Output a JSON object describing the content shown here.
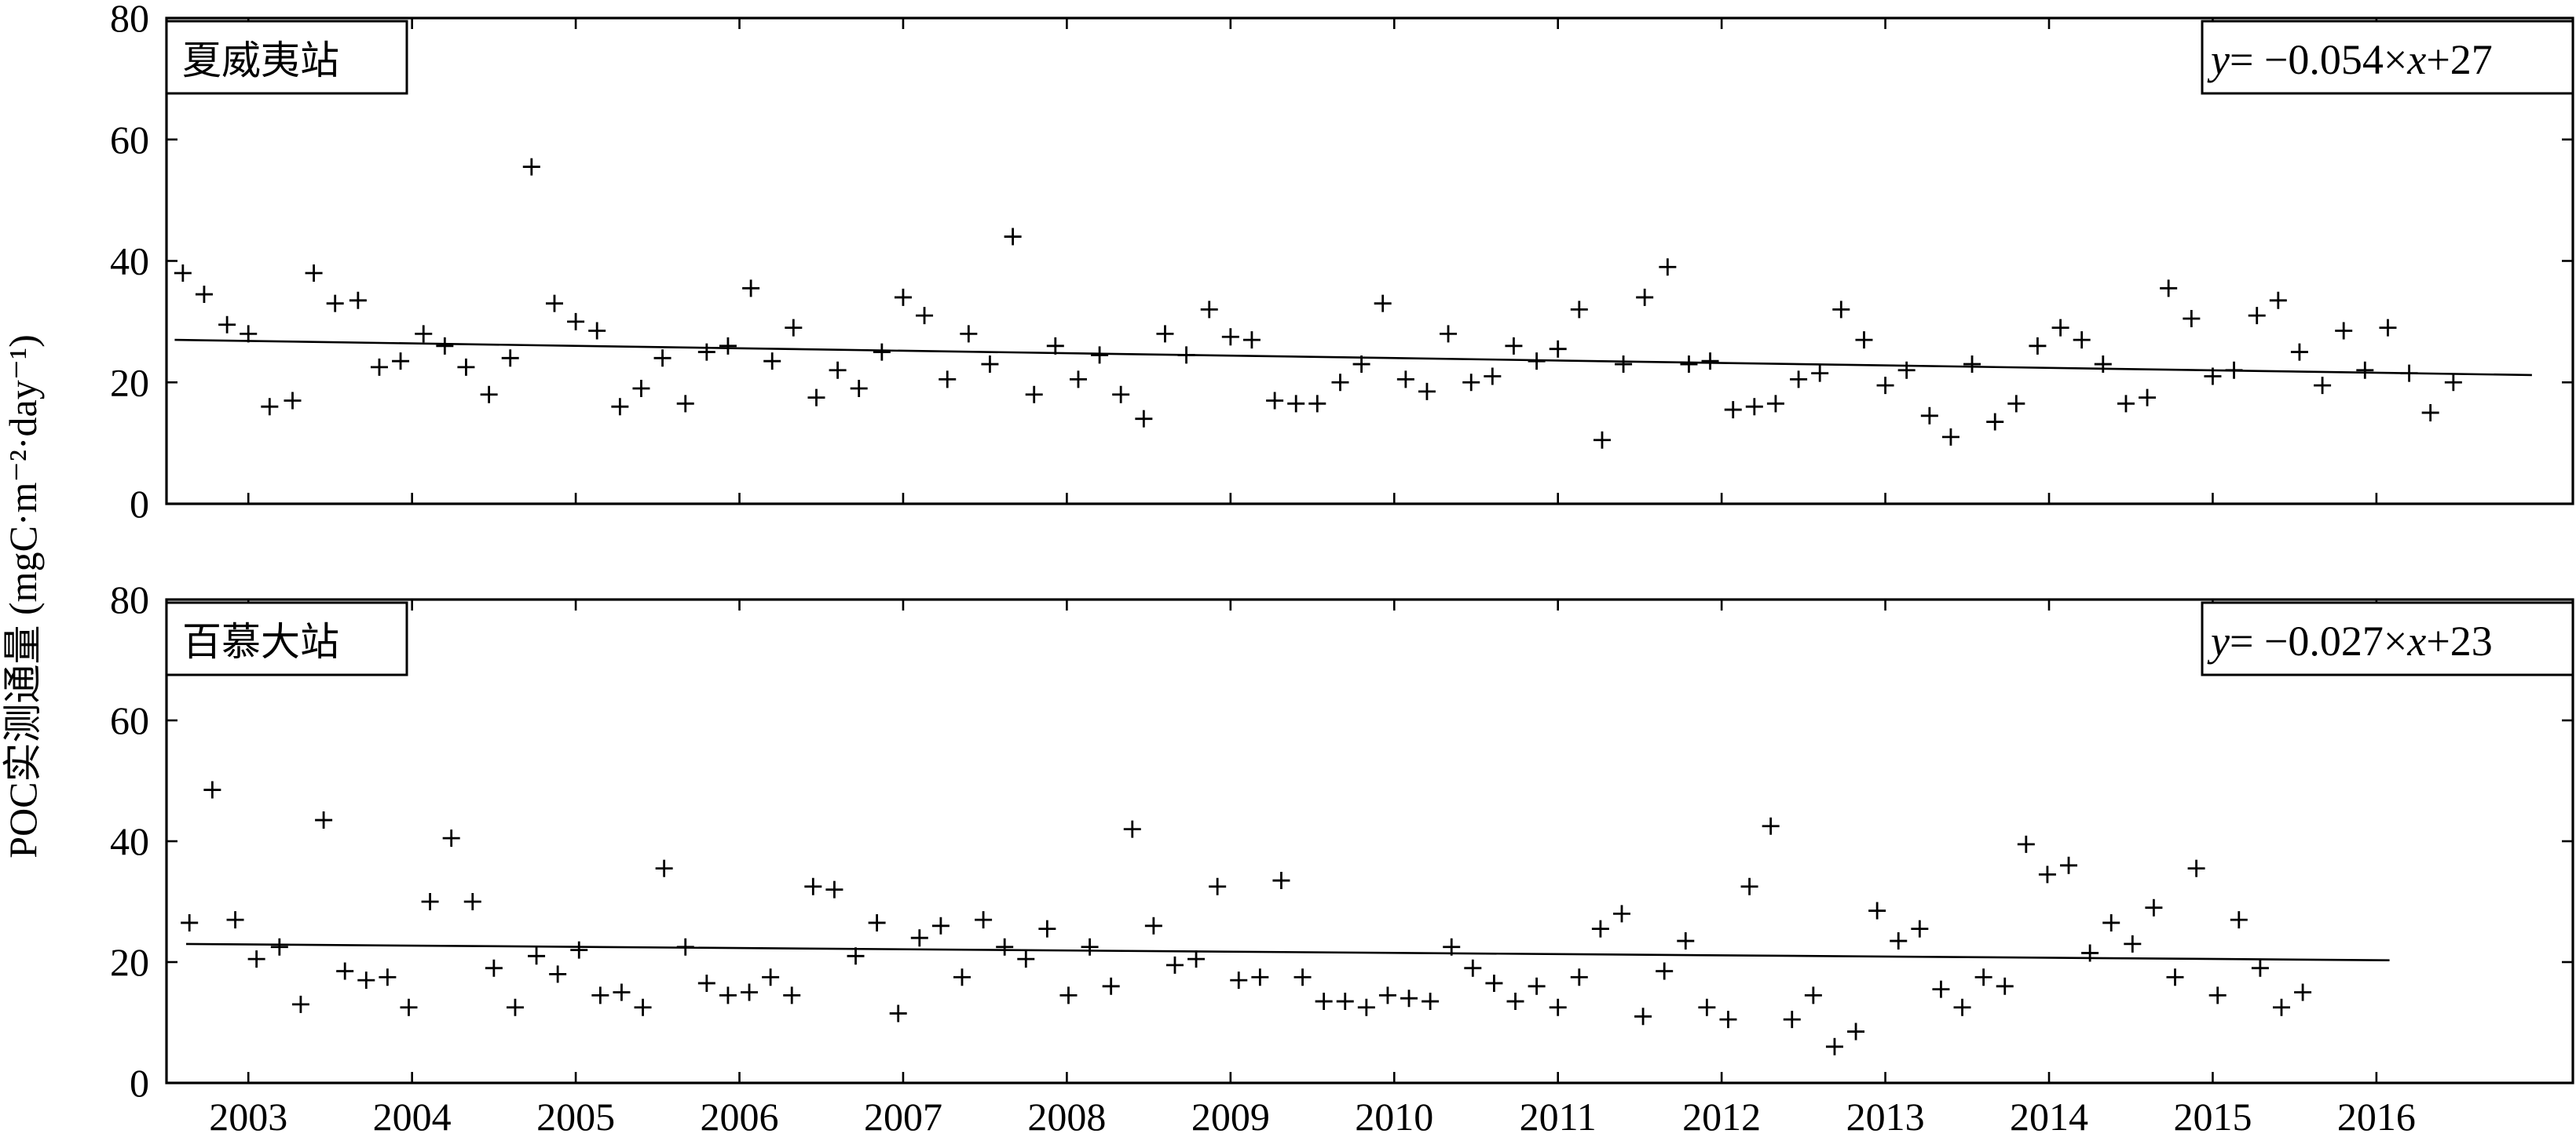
{
  "ylabel": "POC实测通量 (mgC·m⁻²·day⁻¹)",
  "chart_data": [
    {
      "type": "scatter",
      "title": "夏威夷站",
      "equation": {
        "y": "y",
        "x": "x",
        "rhs_a": "= −0.054×",
        "rhs_b": "+27"
      },
      "xlim": [
        2002.5,
        2017.2
      ],
      "ylim": [
        0,
        80
      ],
      "xticks": [
        2003,
        2004,
        2005,
        2006,
        2007,
        2008,
        2009,
        2010,
        2011,
        2012,
        2013,
        2014,
        2015,
        2016
      ],
      "yticks": [
        0,
        20,
        40,
        60,
        80
      ],
      "show_xtick_labels": false,
      "trend": {
        "x": [
          2002.55,
          2016.95
        ],
        "y": [
          27.0,
          21.2
        ]
      },
      "points": [
        [
          2002.6,
          38
        ],
        [
          2002.73,
          34.5
        ],
        [
          2002.87,
          29.5
        ],
        [
          2003.0,
          28
        ],
        [
          2003.13,
          16
        ],
        [
          2003.27,
          17
        ],
        [
          2003.4,
          38
        ],
        [
          2003.53,
          33
        ],
        [
          2003.67,
          33.5
        ],
        [
          2003.8,
          22.5
        ],
        [
          2003.93,
          23.5
        ],
        [
          2004.07,
          28
        ],
        [
          2004.2,
          26
        ],
        [
          2004.33,
          22.5
        ],
        [
          2004.47,
          18
        ],
        [
          2004.6,
          24
        ],
        [
          2004.73,
          55.5
        ],
        [
          2004.87,
          33
        ],
        [
          2005.0,
          30
        ],
        [
          2005.13,
          28.5
        ],
        [
          2005.27,
          16
        ],
        [
          2005.4,
          19
        ],
        [
          2005.53,
          24
        ],
        [
          2005.67,
          16.5
        ],
        [
          2005.8,
          25
        ],
        [
          2005.93,
          26
        ],
        [
          2006.07,
          35.5
        ],
        [
          2006.2,
          23.5
        ],
        [
          2006.33,
          29
        ],
        [
          2006.47,
          17.5
        ],
        [
          2006.6,
          22
        ],
        [
          2006.73,
          19
        ],
        [
          2006.87,
          25
        ],
        [
          2007.0,
          34
        ],
        [
          2007.13,
          31
        ],
        [
          2007.27,
          20.5
        ],
        [
          2007.4,
          28
        ],
        [
          2007.53,
          23
        ],
        [
          2007.67,
          44
        ],
        [
          2007.8,
          18
        ],
        [
          2007.93,
          26
        ],
        [
          2008.07,
          20.5
        ],
        [
          2008.2,
          24.5
        ],
        [
          2008.33,
          18
        ],
        [
          2008.47,
          14
        ],
        [
          2008.6,
          28
        ],
        [
          2008.73,
          24.5
        ],
        [
          2008.87,
          32
        ],
        [
          2009.0,
          27.5
        ],
        [
          2009.13,
          27
        ],
        [
          2009.27,
          17
        ],
        [
          2009.4,
          16.5
        ],
        [
          2009.53,
          16.5
        ],
        [
          2009.67,
          20
        ],
        [
          2009.8,
          23
        ],
        [
          2009.93,
          33
        ],
        [
          2010.07,
          20.5
        ],
        [
          2010.2,
          18.5
        ],
        [
          2010.33,
          28
        ],
        [
          2010.47,
          20
        ],
        [
          2010.6,
          21
        ],
        [
          2010.73,
          26
        ],
        [
          2010.87,
          23.5
        ],
        [
          2011.0,
          25.5
        ],
        [
          2011.13,
          32
        ],
        [
          2011.27,
          10.5
        ],
        [
          2011.4,
          23
        ],
        [
          2011.53,
          34
        ],
        [
          2011.67,
          39
        ],
        [
          2011.8,
          23
        ],
        [
          2011.93,
          23.5
        ],
        [
          2012.07,
          15.5
        ],
        [
          2012.2,
          16
        ],
        [
          2012.33,
          16.5
        ],
        [
          2012.47,
          20.5
        ],
        [
          2012.6,
          21.5
        ],
        [
          2012.73,
          32
        ],
        [
          2012.87,
          27
        ],
        [
          2013.0,
          19.5
        ],
        [
          2013.13,
          22
        ],
        [
          2013.27,
          14.5
        ],
        [
          2013.4,
          11
        ],
        [
          2013.53,
          23
        ],
        [
          2013.67,
          13.5
        ],
        [
          2013.8,
          16.5
        ],
        [
          2013.93,
          26
        ],
        [
          2014.07,
          29
        ],
        [
          2014.2,
          27
        ],
        [
          2014.33,
          23
        ],
        [
          2014.47,
          16.5
        ],
        [
          2014.6,
          17.5
        ],
        [
          2014.73,
          35.5
        ],
        [
          2014.87,
          30.5
        ],
        [
          2015.0,
          21
        ],
        [
          2015.13,
          22
        ],
        [
          2015.27,
          31
        ],
        [
          2015.4,
          33.5
        ],
        [
          2015.53,
          25
        ],
        [
          2015.67,
          19.5
        ],
        [
          2015.8,
          28.5
        ],
        [
          2015.93,
          22
        ],
        [
          2016.07,
          29
        ],
        [
          2016.2,
          21.5
        ],
        [
          2016.33,
          15
        ],
        [
          2016.47,
          20
        ]
      ]
    },
    {
      "type": "scatter",
      "title": "百慕大站",
      "equation": {
        "y": "y",
        "x": "x",
        "rhs_a": "= −0.027×",
        "rhs_b": "+23"
      },
      "xlim": [
        2002.5,
        2017.2
      ],
      "ylim": [
        0,
        80
      ],
      "xticks": [
        2003,
        2004,
        2005,
        2006,
        2007,
        2008,
        2009,
        2010,
        2011,
        2012,
        2013,
        2014,
        2015,
        2016
      ],
      "yticks": [
        0,
        20,
        40,
        60,
        80
      ],
      "show_xtick_labels": true,
      "trend": {
        "x": [
          2002.62,
          2016.08
        ],
        "y": [
          23.0,
          20.3
        ]
      },
      "points": [
        [
          2002.64,
          26.5
        ],
        [
          2002.78,
          48.5
        ],
        [
          2002.92,
          27
        ],
        [
          2003.05,
          20.5
        ],
        [
          2003.19,
          22.5
        ],
        [
          2003.32,
          13
        ],
        [
          2003.46,
          43.5
        ],
        [
          2003.59,
          18.5
        ],
        [
          2003.72,
          17
        ],
        [
          2003.85,
          17.5
        ],
        [
          2003.98,
          12.5
        ],
        [
          2004.11,
          30
        ],
        [
          2004.24,
          40.5
        ],
        [
          2004.37,
          30
        ],
        [
          2004.5,
          19
        ],
        [
          2004.63,
          12.5
        ],
        [
          2004.76,
          21
        ],
        [
          2004.89,
          18
        ],
        [
          2005.02,
          22
        ],
        [
          2005.15,
          14.5
        ],
        [
          2005.28,
          15
        ],
        [
          2005.41,
          12.5
        ],
        [
          2005.54,
          35.5
        ],
        [
          2005.67,
          22.5
        ],
        [
          2005.8,
          16.5
        ],
        [
          2005.93,
          14.5
        ],
        [
          2006.06,
          15
        ],
        [
          2006.19,
          17.5
        ],
        [
          2006.32,
          14.5
        ],
        [
          2006.45,
          32.5
        ],
        [
          2006.58,
          32
        ],
        [
          2006.71,
          21
        ],
        [
          2006.84,
          26.5
        ],
        [
          2006.97,
          11.5
        ],
        [
          2007.1,
          24
        ],
        [
          2007.23,
          26
        ],
        [
          2007.36,
          17.5
        ],
        [
          2007.49,
          27
        ],
        [
          2007.62,
          22.5
        ],
        [
          2007.75,
          20.5
        ],
        [
          2007.88,
          25.5
        ],
        [
          2008.01,
          14.5
        ],
        [
          2008.14,
          22.5
        ],
        [
          2008.27,
          16
        ],
        [
          2008.4,
          42
        ],
        [
          2008.53,
          26
        ],
        [
          2008.66,
          19.5
        ],
        [
          2008.79,
          20.5
        ],
        [
          2008.92,
          32.5
        ],
        [
          2009.05,
          17
        ],
        [
          2009.18,
          17.5
        ],
        [
          2009.31,
          33.5
        ],
        [
          2009.44,
          17.5
        ],
        [
          2009.57,
          13.5
        ],
        [
          2009.7,
          13.5
        ],
        [
          2009.83,
          12.5
        ],
        [
          2009.96,
          14.5
        ],
        [
          2010.09,
          14
        ],
        [
          2010.22,
          13.5
        ],
        [
          2010.35,
          22.5
        ],
        [
          2010.48,
          19
        ],
        [
          2010.61,
          16.5
        ],
        [
          2010.74,
          13.5
        ],
        [
          2010.87,
          16
        ],
        [
          2011.0,
          12.5
        ],
        [
          2011.13,
          17.5
        ],
        [
          2011.26,
          25.5
        ],
        [
          2011.39,
          28
        ],
        [
          2011.52,
          11
        ],
        [
          2011.65,
          18.5
        ],
        [
          2011.78,
          23.5
        ],
        [
          2011.91,
          12.5
        ],
        [
          2012.04,
          10.5
        ],
        [
          2012.17,
          32.5
        ],
        [
          2012.3,
          42.5
        ],
        [
          2012.43,
          10.5
        ],
        [
          2012.56,
          14.5
        ],
        [
          2012.69,
          6
        ],
        [
          2012.82,
          8.5
        ],
        [
          2012.95,
          28.5
        ],
        [
          2013.08,
          23.5
        ],
        [
          2013.21,
          25.5
        ],
        [
          2013.34,
          15.5
        ],
        [
          2013.47,
          12.5
        ],
        [
          2013.6,
          17.5
        ],
        [
          2013.73,
          16
        ],
        [
          2013.86,
          39.5
        ],
        [
          2013.99,
          34.5
        ],
        [
          2014.12,
          36
        ],
        [
          2014.25,
          21.5
        ],
        [
          2014.38,
          26.5
        ],
        [
          2014.51,
          23
        ],
        [
          2014.64,
          29
        ],
        [
          2014.77,
          17.5
        ],
        [
          2014.9,
          35.5
        ],
        [
          2015.03,
          14.5
        ],
        [
          2015.16,
          27
        ],
        [
          2015.29,
          19
        ],
        [
          2015.42,
          12.5
        ],
        [
          2015.55,
          15
        ]
      ]
    }
  ]
}
